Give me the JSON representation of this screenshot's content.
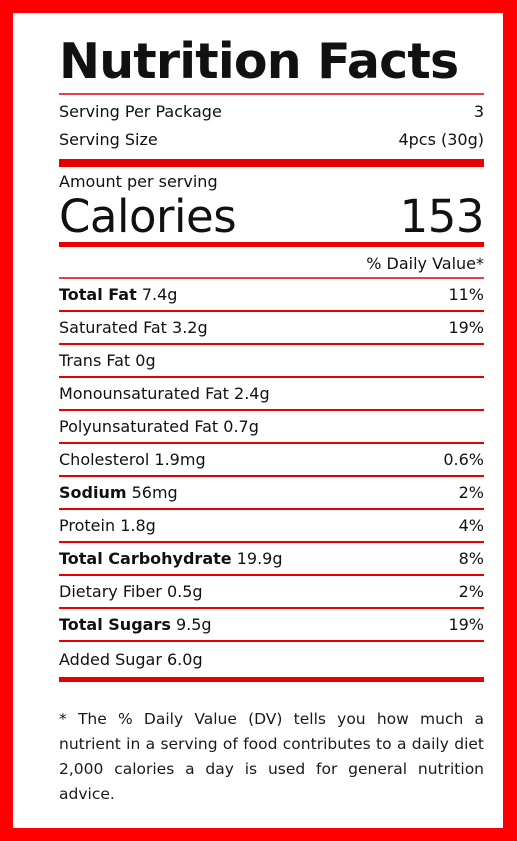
{
  "title": "Nutrition Facts",
  "serving": {
    "per_package_label": "Serving Per Package",
    "per_package_value": "3",
    "size_label": "Serving Size",
    "size_value": "4pcs (30g)"
  },
  "calories": {
    "amount_label": "Amount per serving",
    "label": "Calories",
    "value": "153"
  },
  "daily_value_header": "% Daily Value*",
  "nutrients": [
    {
      "name": "Total Fat",
      "amount": "7.4g",
      "dv": "11%",
      "bold": true
    },
    {
      "name": "Saturated Fat",
      "amount": "3.2g",
      "dv": "19%",
      "bold": false
    },
    {
      "name": "Trans Fat",
      "amount": "0g",
      "dv": "",
      "bold": false
    },
    {
      "name": "Monounsaturated Fat",
      "amount": "2.4g",
      "dv": "",
      "bold": false
    },
    {
      "name": "Polyunsaturated Fat",
      "amount": "0.7g",
      "dv": "",
      "bold": false
    },
    {
      "name": "Cholesterol",
      "amount": "1.9mg",
      "dv": "0.6%",
      "bold": false
    },
    {
      "name": "Sodium",
      "amount": "56mg",
      "dv": "2%",
      "bold": true
    },
    {
      "name": "Protein",
      "amount": "1.8g",
      "dv": "4%",
      "bold": false
    },
    {
      "name": "Total Carbohydrate",
      "amount": "19.9g",
      "dv": "8%",
      "bold": true
    },
    {
      "name": "Dietary Fiber",
      "amount": "0.5g",
      "dv": "2%",
      "bold": false
    },
    {
      "name": "Total Sugars",
      "amount": "9.5g",
      "dv": "19%",
      "bold": true
    },
    {
      "name": "Added Sugar",
      "amount": "6.0g",
      "dv": "",
      "bold": false
    }
  ],
  "footnote": "* The % Daily Value (DV) tells you how much a nutrient in a serving of food contributes to a daily diet 2,000 calories a day is used for general nutrition advice.",
  "colors": {
    "border": "#ff0000",
    "rule": "#e80000"
  }
}
